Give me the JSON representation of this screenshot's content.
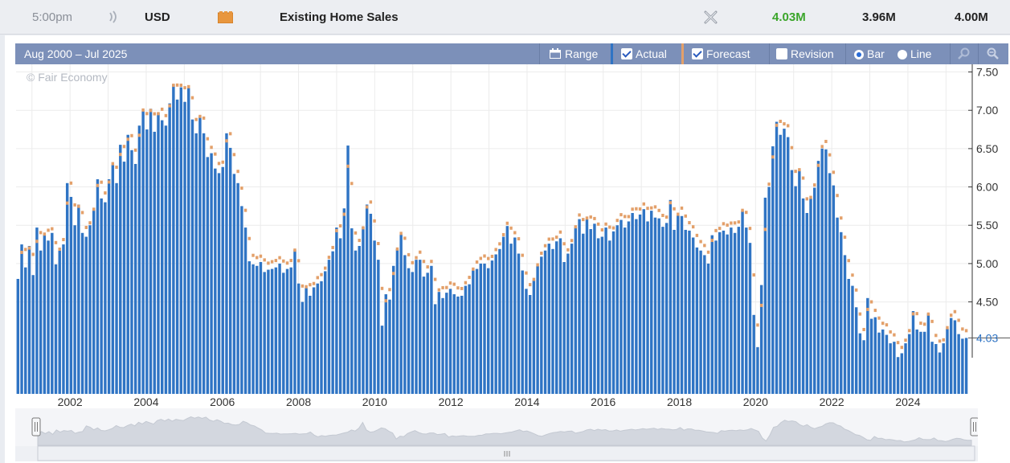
{
  "header": {
    "time": "5:00pm",
    "currency": "USD",
    "event": "Existing Home Sales",
    "actual": "4.03M",
    "forecast": "3.96M",
    "previous": "4.00M",
    "icons": [
      "sound-icon",
      "folder-icon",
      "close-icon"
    ],
    "actual_color": "#3aa52a"
  },
  "toolbar": {
    "range_text": "Aug 2000 – Jul 2025",
    "range_button": "Range",
    "actual_label": "Actual",
    "forecast_label": "Forecast",
    "revision_label": "Revision",
    "bar_label": "Bar",
    "line_label": "Line",
    "actual_checked": true,
    "forecast_checked": true,
    "revision_checked": false,
    "mode": "bar"
  },
  "watermark": "© Fair Economy",
  "chart_data": {
    "type": "bar",
    "x_range": [
      "Aug 2000",
      "Jul 2025"
    ],
    "ylim": [
      3.3,
      7.6
    ],
    "yticks": [
      "7.50",
      "7.00",
      "6.50",
      "6.00",
      "5.50",
      "5.00",
      "4.50"
    ],
    "xticks": [
      "2002",
      "2004",
      "2006",
      "2008",
      "2010",
      "2012",
      "2014",
      "2016",
      "2018",
      "2020",
      "2022",
      "2024"
    ],
    "current_value_label": "4.03",
    "bar_color": "#2f74c4",
    "forecast_color": "#e3a06a",
    "series": [
      {
        "name": "Actual",
        "values": [
          4.8,
          5.25,
          4.95,
          5.23,
          4.85,
          5.47,
          5.17,
          5.38,
          5.3,
          5.4,
          4.99,
          5.17,
          5.25,
          6.05,
          5.87,
          5.5,
          5.77,
          5.4,
          5.35,
          5.5,
          5.7,
          6.1,
          5.85,
          5.8,
          6.1,
          6.29,
          6.05,
          6.55,
          6.33,
          6.68,
          6.48,
          6.3,
          6.8,
          6.99,
          6.75,
          7.02,
          6.72,
          6.97,
          6.87,
          6.8,
          7.09,
          7.34,
          7.14,
          7.3,
          7.11,
          7.29,
          6.88,
          6.7,
          6.92,
          6.7,
          6.39,
          6.44,
          6.24,
          6.18,
          6.26,
          6.7,
          6.51,
          6.17,
          6.05,
          5.75,
          5.47,
          5.03,
          4.99,
          4.97,
          5.02,
          4.89,
          4.92,
          4.93,
          4.95,
          5.0,
          4.88,
          4.93,
          4.95,
          5.18,
          4.74,
          4.5,
          4.68,
          4.58,
          4.69,
          4.74,
          4.77,
          4.9,
          5.05,
          5.16,
          5.47,
          5.33,
          5.72,
          6.54,
          5.46,
          5.17,
          5.23,
          5.48,
          5.77,
          5.65,
          5.3,
          5.05,
          4.19,
          4.6,
          4.53,
          4.97,
          5.19,
          5.38,
          5.11,
          4.94,
          4.89,
          5.05,
          5.05,
          4.83,
          4.88,
          4.97,
          4.47,
          4.63,
          4.55,
          4.62,
          4.67,
          4.6,
          4.57,
          4.58,
          4.71,
          4.73,
          4.91,
          4.93,
          5.0,
          5.0,
          4.94,
          5.04,
          5.12,
          5.19,
          5.35,
          5.49,
          5.26,
          5.34,
          5.13,
          4.91,
          4.67,
          4.59,
          4.78,
          4.97,
          5.09,
          5.17,
          5.26,
          5.19,
          5.29,
          5.33,
          5.02,
          5.13,
          5.26,
          5.48,
          5.58,
          5.39,
          5.58,
          5.45,
          5.52,
          5.33,
          5.35,
          5.47,
          5.3,
          5.42,
          5.5,
          5.57,
          5.47,
          5.55,
          5.66,
          5.58,
          5.64,
          5.71,
          5.55,
          5.69,
          5.6,
          5.59,
          5.48,
          5.53,
          5.83,
          5.44,
          5.63,
          5.62,
          5.44,
          5.43,
          5.34,
          5.21,
          5.17,
          5.11,
          5.0,
          5.37,
          5.3,
          5.41,
          5.43,
          5.38,
          5.47,
          5.4,
          5.48,
          5.69,
          5.47,
          5.27,
          4.33,
          3.91,
          4.72,
          5.86,
          6.0,
          6.53,
          6.85,
          6.68,
          6.76,
          6.65,
          6.22,
          6.01,
          6.22,
          5.85,
          5.66,
          5.85,
          5.99,
          6.34,
          6.5,
          6.49,
          6.18,
          6.02,
          5.6,
          5.41,
          5.11,
          4.8,
          4.71,
          4.43,
          4.09,
          4.0,
          4.55,
          4.28,
          4.3,
          4.1,
          4.14,
          4.07,
          3.96,
          3.98,
          3.78,
          3.83,
          3.96,
          4.08,
          4.38,
          4.14,
          4.11,
          4.11,
          4.35,
          3.98,
          3.95,
          3.84,
          3.96,
          4.15,
          4.29,
          4.26,
          4.08,
          4.02,
          4.03
        ]
      }
    ]
  }
}
